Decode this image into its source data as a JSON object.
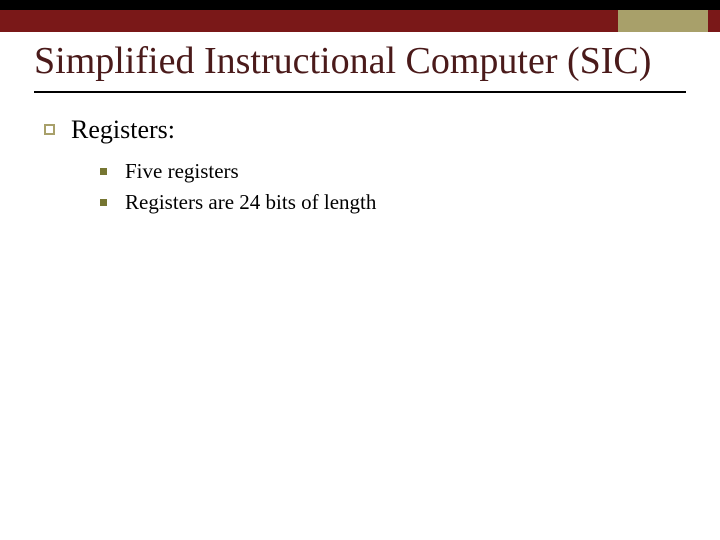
{
  "colors": {
    "topbar_bg": "#000000",
    "topbar_maroon": "#7a1818",
    "topbar_olive": "#a8a06a",
    "title_color": "#4a1a1a",
    "rule_color": "#000000",
    "lvl1_bullet_border": "#a8a06a",
    "lvl2_bullet_fill": "#767632",
    "body_text": "#000000",
    "background": "#ffffff"
  },
  "typography": {
    "font_family": "Times New Roman",
    "title_fontsize": 38,
    "lvl1_fontsize": 26,
    "lvl2_fontsize": 21
  },
  "title": "Simplified Instructional Computer (SIC)",
  "body": {
    "lvl1": [
      {
        "label": "Registers:",
        "children": [
          "Five registers",
          "Registers are 24 bits of length"
        ]
      }
    ]
  }
}
